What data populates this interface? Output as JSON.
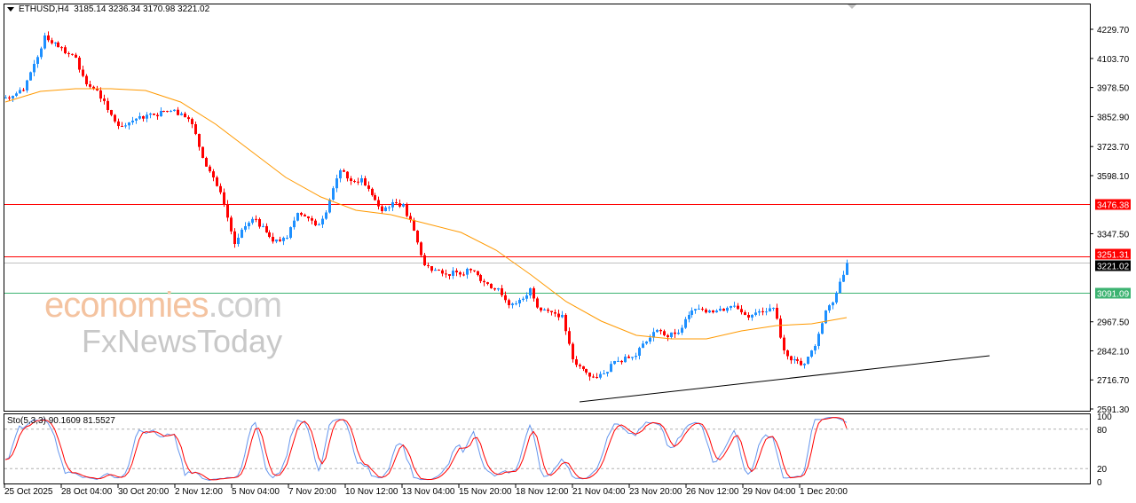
{
  "header": {
    "symbol": "ETHUSD,H4",
    "ohlc": "3185.14 3236.34 3170.98 3221.02"
  },
  "indicator": {
    "label": "Sto(5,3,3) 90.1609 81.5527",
    "levels": [
      "100",
      "80",
      "20",
      "0"
    ]
  },
  "watermark": {
    "line1": "economies",
    "line1_suffix": ".com",
    "line2": "FxNewsToday"
  },
  "colors": {
    "up": "#1e90ff",
    "down": "#ff0000",
    "ma": "#ff9900",
    "stoch_main": "#6495ed",
    "stoch_signal": "#ff0000",
    "support": "#3cb371",
    "resistance": "#ff0000"
  },
  "chart_data": {
    "type": "candlestick",
    "symbol": "ETHUSD",
    "timeframe": "H4",
    "ylim": [
      2591.3,
      4229.7
    ],
    "y_ticks": [
      "4229.70",
      "4103.70",
      "3978.50",
      "3852.90",
      "3723.70",
      "3598.10",
      "3347.50",
      "2967.50",
      "2842.10",
      "2716.70",
      "2591.30"
    ],
    "x_ticks": [
      "25 Oct 2025",
      "28 Oct 04:00",
      "30 Oct 20:00",
      "2 Nov 12:00",
      "5 Nov 04:00",
      "7 Nov 20:00",
      "10 Nov 12:00",
      "13 Nov 04:00",
      "15 Nov 20:00",
      "18 Nov 12:00",
      "21 Nov 04:00",
      "23 Nov 20:00",
      "26 Nov 12:00",
      "29 Nov 04:00",
      "1 Dec 20:00"
    ],
    "closes_12h": [
      3942.6,
      3965.6,
      4080.4,
      4202.9,
      4172.3,
      4126.3,
      4107.2,
      3992.4,
      3965.6,
      3881.4,
      3812.4,
      3827.8,
      3854.6,
      3866.0,
      3877.5,
      3877.5,
      3866.0,
      3820.1,
      3674.6,
      3590.4,
      3475.6,
      3303.3,
      3379.9,
      3410.5,
      3353.1,
      3322.5,
      3330.1,
      3437.3,
      3414.3,
      3387.5,
      3494.7,
      3621.0,
      3575.1,
      3586.6,
      3513.9,
      3445.0,
      3483.2,
      3475.6,
      3360.7,
      3211.5,
      3192.3,
      3173.2,
      3180.8,
      3196.1,
      3169.3,
      3131.1,
      3111.9,
      3039.2,
      3062.2,
      3111.9,
      3016.2,
      3008.6,
      2997.1,
      2805.7,
      2763.6,
      2729.1,
      2744.4,
      2798.0,
      2817.2,
      2821.0,
      2882.2,
      2932.0,
      2901.4,
      2920.5,
      2997.1,
      3023.9,
      3016.2,
      3023.9,
      3035.4,
      3008.6,
      2997.1,
      3008.6,
      3027.7,
      2844.0,
      2805.7,
      2786.5,
      2863.1,
      3016.2,
      3092.8,
      3221.02
    ],
    "moving_average": [
      3915.8,
      3961.7,
      3973.2,
      3973.2,
      3965.6,
      3915.8,
      3820.1,
      3705.3,
      3590.4,
      3506.2,
      3448.8,
      3429.7,
      3391.4,
      3353.1,
      3276.5,
      3169.3,
      3054.5,
      2970.3,
      2909.0,
      2893.7,
      2893.7,
      2928.2,
      2951.1,
      2958.8,
      2985.6
    ],
    "levels": [
      {
        "label": "3476.38",
        "value": 3476.38,
        "color": "#ff0000"
      },
      {
        "label": "3251.31",
        "value": 3251.31,
        "color": "#ff0000"
      },
      {
        "label": "3221.02",
        "value": 3221.02,
        "color": "#000000"
      },
      {
        "label": "3091.09",
        "value": 3091.09,
        "color": "#3cb371"
      }
    ],
    "trendline": {
      "start_price": 2621.9,
      "end_price": 2821.0
    },
    "stochastic": {
      "k": 90.1609,
      "d": 81.5527,
      "upper": 80,
      "lower": 20
    }
  }
}
